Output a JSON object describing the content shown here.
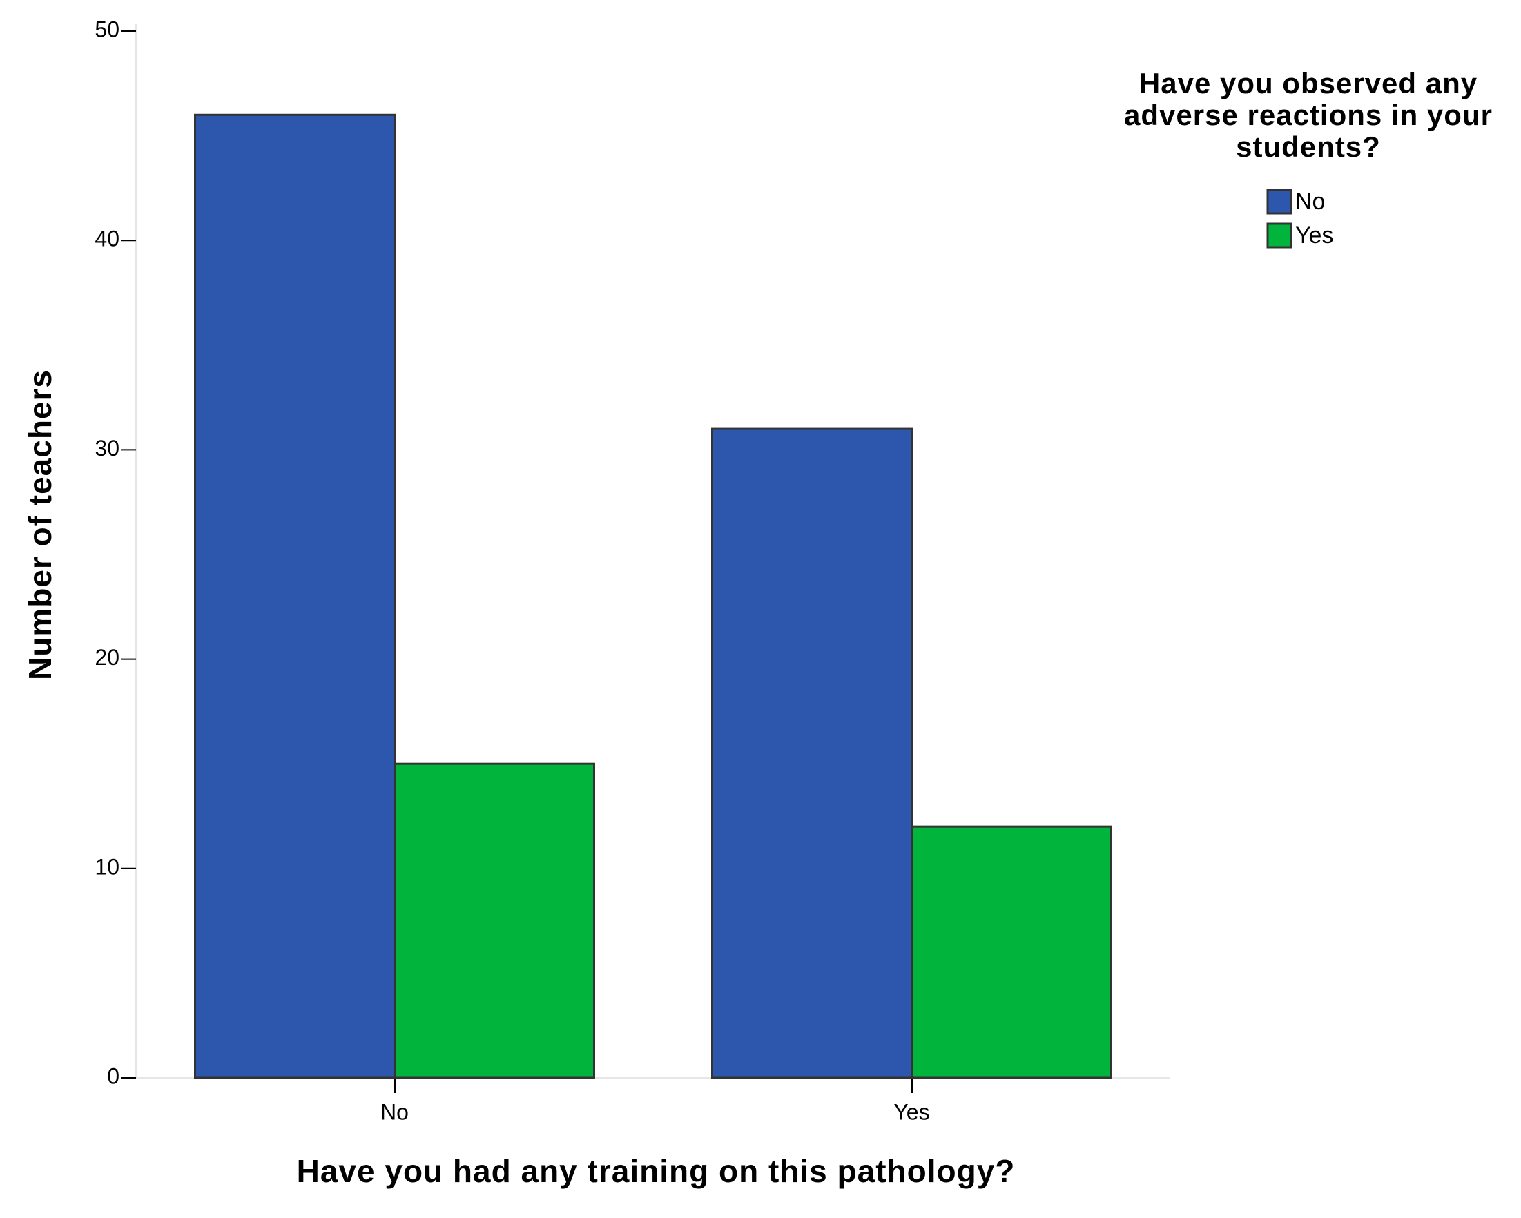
{
  "chart_data": {
    "type": "bar",
    "x_label": "Have you had any training on this pathology?",
    "y_label": "Number of teachers",
    "legend_title": "Have you observed any adverse reactions in your students?",
    "categories": [
      "No",
      "Yes"
    ],
    "series": [
      {
        "name": "No",
        "color": "#2d57ad",
        "values": [
          46,
          31
        ]
      },
      {
        "name": "Yes",
        "color": "#00b43c",
        "values": [
          15,
          12
        ]
      }
    ],
    "ylim": [
      0,
      50
    ],
    "yticks": [
      0,
      10,
      20,
      30,
      40,
      50
    ],
    "grid": false,
    "legend": "top-right"
  }
}
